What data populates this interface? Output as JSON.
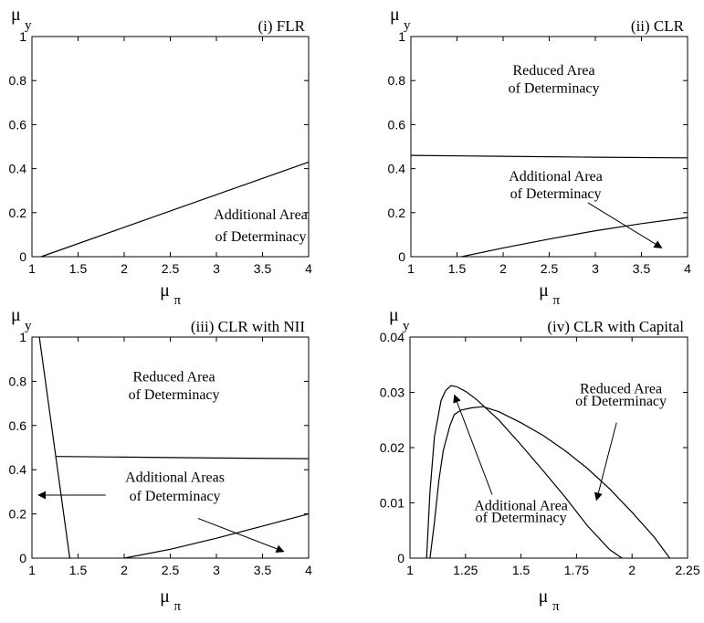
{
  "chart_data": [
    {
      "type": "line",
      "title": "(i) FLR",
      "xlabel": "μ",
      "xlabel_sub": "π",
      "ylabel": "μ",
      "ylabel_sub": "y",
      "xlim": [
        1,
        4
      ],
      "ylim": [
        0,
        1
      ],
      "xticks": [
        1,
        1.5,
        2,
        2.5,
        3,
        3.5,
        4
      ],
      "xtick_labels": [
        "1",
        "1.5",
        "2",
        "2.5",
        "3",
        "3.5",
        "4"
      ],
      "yticks": [
        0,
        0.2,
        0.4,
        0.6,
        0.8,
        1
      ],
      "ytick_labels": [
        "0",
        "0.2",
        "0.4",
        "0.6",
        "0.8",
        "1"
      ],
      "series": [
        {
          "x": [
            1.1,
            4
          ],
          "y": [
            0,
            0.43
          ]
        }
      ],
      "annotations": [
        {
          "lines": [
            "Additional Area",
            "of Determinacy"
          ],
          "x": 3.48,
          "y": [
            0.17,
            0.07
          ],
          "anchor": "middle"
        }
      ],
      "arrows": []
    },
    {
      "type": "line",
      "title": "(ii) CLR",
      "xlabel": "μ",
      "xlabel_sub": "π",
      "ylabel": "μ",
      "ylabel_sub": "y",
      "xlim": [
        1,
        4
      ],
      "ylim": [
        0,
        1
      ],
      "xticks": [
        1,
        1.5,
        2,
        2.5,
        3,
        3.5,
        4
      ],
      "xtick_labels": [
        "1",
        "1.5",
        "2",
        "2.5",
        "3",
        "3.5",
        "4"
      ],
      "yticks": [
        0,
        0.2,
        0.4,
        0.6,
        0.8,
        1
      ],
      "ytick_labels": [
        "0",
        "0.2",
        "0.4",
        "0.6",
        "0.8",
        "1"
      ],
      "series": [
        {
          "x": [
            1,
            2,
            3,
            4
          ],
          "y": [
            0.46,
            0.456,
            0.452,
            0.449
          ]
        },
        {
          "x": [
            1.55,
            2,
            2.5,
            3,
            3.5,
            4
          ],
          "y": [
            0,
            0.04,
            0.08,
            0.118,
            0.15,
            0.178
          ]
        }
      ],
      "annotations": [
        {
          "lines": [
            "Reduced Area",
            "of Determinacy"
          ],
          "x": 2.55,
          "y": [
            0.825,
            0.745
          ],
          "anchor": "middle"
        },
        {
          "lines": [
            "Additional Area",
            "of Determinacy"
          ],
          "x": 2.57,
          "y": [
            0.345,
            0.265
          ],
          "anchor": "middle"
        }
      ],
      "arrows": [
        {
          "from": [
            2.92,
            0.245
          ],
          "to": [
            3.72,
            0.04
          ]
        }
      ]
    },
    {
      "type": "line",
      "title": "(iii) CLR with NII",
      "xlabel": "μ",
      "xlabel_sub": "π",
      "ylabel": "μ",
      "ylabel_sub": "y",
      "xlim": [
        1,
        4
      ],
      "ylim": [
        0,
        1
      ],
      "xticks": [
        1,
        1.5,
        2,
        2.5,
        3,
        3.5,
        4
      ],
      "xtick_labels": [
        "1",
        "1.5",
        "2",
        "2.5",
        "3",
        "3.5",
        "4"
      ],
      "yticks": [
        0,
        0.2,
        0.4,
        0.6,
        0.8,
        1
      ],
      "ytick_labels": [
        "0",
        "0.2",
        "0.4",
        "0.6",
        "0.8",
        "1"
      ],
      "series": [
        {
          "x": [
            1.08,
            1.41
          ],
          "y": [
            1,
            0
          ]
        },
        {
          "x": [
            1.26,
            2,
            3,
            4
          ],
          "y": [
            0.46,
            0.457,
            0.453,
            0.45
          ]
        },
        {
          "x": [
            2,
            2.5,
            3,
            3.5,
            4
          ],
          "y": [
            0,
            0.04,
            0.09,
            0.145,
            0.2
          ]
        }
      ],
      "annotations": [
        {
          "lines": [
            "Reduced Area",
            "of Determinacy"
          ],
          "x": 2.54,
          "y": [
            0.8,
            0.72
          ],
          "anchor": "middle"
        },
        {
          "lines": [
            "Additional Areas",
            "of Determinacy"
          ],
          "x": 2.55,
          "y": [
            0.345,
            0.26
          ],
          "anchor": "middle"
        }
      ],
      "arrows": [
        {
          "from": [
            1.8,
            0.285
          ],
          "to": [
            1.07,
            0.285
          ]
        },
        {
          "from": [
            2.8,
            0.18
          ],
          "to": [
            3.73,
            0.03
          ]
        }
      ]
    },
    {
      "type": "line",
      "title": "(iv) CLR with Capital",
      "xlabel": "μ",
      "xlabel_sub": "π",
      "ylabel": "μ",
      "ylabel_sub": "y",
      "xlim": [
        1,
        2.25
      ],
      "ylim": [
        0,
        0.04
      ],
      "xticks": [
        1,
        1.25,
        1.5,
        1.75,
        2,
        2.25
      ],
      "xtick_labels": [
        "1",
        "1.25",
        "1.5",
        "1.75",
        "2",
        "2.25"
      ],
      "yticks": [
        0,
        0.01,
        0.02,
        0.03,
        0.04
      ],
      "ytick_labels": [
        "0",
        "0.01",
        "0.02",
        "0.03",
        "0.04"
      ],
      "series": [
        {
          "x": [
            1.075,
            1.09,
            1.11,
            1.14,
            1.16,
            1.185,
            1.21,
            1.25,
            1.3,
            1.4,
            1.5,
            1.6,
            1.7,
            1.8,
            1.9,
            1.955
          ],
          "y": [
            0,
            0.012,
            0.022,
            0.0285,
            0.0303,
            0.0312,
            0.031,
            0.0302,
            0.0287,
            0.025,
            0.0205,
            0.0158,
            0.011,
            0.0058,
            0.0015,
            0
          ]
        },
        {
          "x": [
            1.09,
            1.11,
            1.13,
            1.15,
            1.18,
            1.2,
            1.23,
            1.28,
            1.33,
            1.4,
            1.5,
            1.6,
            1.7,
            1.8,
            1.9,
            2.0,
            2.1,
            2.17
          ],
          "y": [
            0,
            0.0065,
            0.014,
            0.0195,
            0.024,
            0.026,
            0.0268,
            0.0272,
            0.0274,
            0.0265,
            0.0245,
            0.0222,
            0.0194,
            0.0162,
            0.0125,
            0.0083,
            0.0038,
            0
          ]
        }
      ],
      "annotations": [
        {
          "lines": [
            "Reduced Area",
            "of Determinacy"
          ],
          "x": 1.95,
          "y": [
            0.0298,
            0.0276
          ],
          "anchor": "middle"
        },
        {
          "lines": [
            "Additional Area",
            "of Determinacy"
          ],
          "x": 1.5,
          "y": [
            0.0087,
            0.0065
          ],
          "anchor": "middle"
        }
      ],
      "arrows": [
        {
          "from": [
            1.93,
            0.0245
          ],
          "to": [
            1.84,
            0.0105
          ]
        },
        {
          "from": [
            1.37,
            0.0115
          ],
          "to": [
            1.2,
            0.0295
          ]
        }
      ]
    }
  ]
}
